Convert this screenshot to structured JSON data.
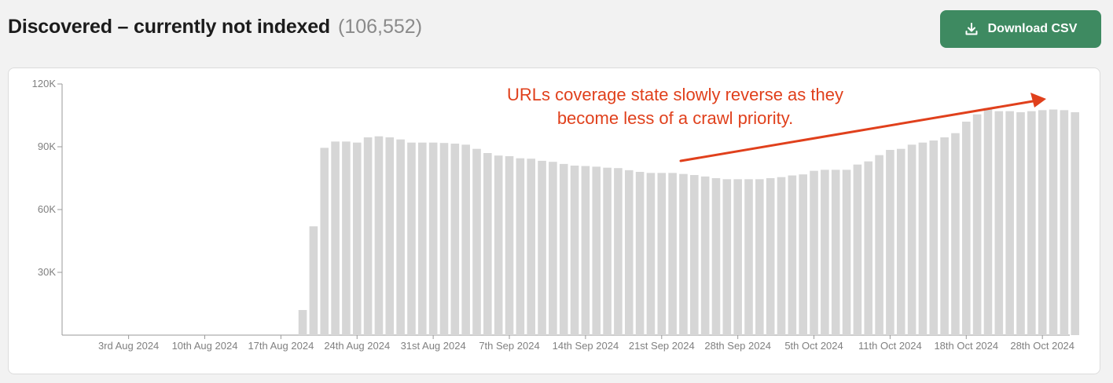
{
  "header": {
    "title": "Discovered – currently not indexed",
    "count": "(106,552)",
    "download_label": "Download CSV"
  },
  "icons": {
    "download": "download-icon"
  },
  "colors": {
    "bar": "#d6d6d6",
    "accent": "#3e8a61",
    "annotation": "#e0401c",
    "axis": "#9a9a9a"
  },
  "annotation": {
    "line1": "URLs coverage state slowly reverse as they",
    "line2": "become less of a crawl priority."
  },
  "chart_data": {
    "type": "bar",
    "title": "Discovered – currently not indexed",
    "xlabel": "",
    "ylabel": "",
    "ylim": [
      0,
      120000
    ],
    "yticks": [
      {
        "value": 120000,
        "label": "120K"
      },
      {
        "value": 90000,
        "label": "90K"
      },
      {
        "value": 60000,
        "label": "60K"
      },
      {
        "value": 30000,
        "label": "30K"
      }
    ],
    "grid": false,
    "first_index": 21,
    "xticks": [
      {
        "index": 5,
        "label": "3rd Aug 2024"
      },
      {
        "index": 12,
        "label": "10th Aug 2024"
      },
      {
        "index": 19,
        "label": "17th Aug 2024"
      },
      {
        "index": 26,
        "label": "24th Aug 2024"
      },
      {
        "index": 33,
        "label": "31st Aug 2024"
      },
      {
        "index": 40,
        "label": "7th Sep 2024"
      },
      {
        "index": 47,
        "label": "14th Sep 2024"
      },
      {
        "index": 54,
        "label": "21st Sep 2024"
      },
      {
        "index": 61,
        "label": "28th Sep 2024"
      },
      {
        "index": 68,
        "label": "5th Oct 2024"
      },
      {
        "index": 75,
        "label": "11th Oct 2024"
      },
      {
        "index": 82,
        "label": "18th Oct 2024"
      },
      {
        "index": 89,
        "label": "28th Oct 2024"
      }
    ],
    "values": [
      12000,
      52000,
      89500,
      92500,
      92500,
      92000,
      94500,
      95000,
      94500,
      93500,
      92000,
      92000,
      92000,
      91800,
      91500,
      91000,
      89000,
      87000,
      85800,
      85500,
      84500,
      84300,
      83300,
      82800,
      81800,
      81000,
      80800,
      80500,
      80000,
      79800,
      78800,
      78000,
      77500,
      77500,
      77500,
      77000,
      76500,
      75800,
      75000,
      74500,
      74500,
      74500,
      74500,
      75000,
      75500,
      76300,
      76800,
      78500,
      79000,
      79000,
      79000,
      81500,
      83000,
      86000,
      88500,
      89000,
      91000,
      92000,
      93000,
      94500,
      96500,
      102000,
      105500,
      108500,
      107000,
      107000,
      106500,
      107000,
      107500,
      107800,
      107500,
      106500
    ]
  }
}
